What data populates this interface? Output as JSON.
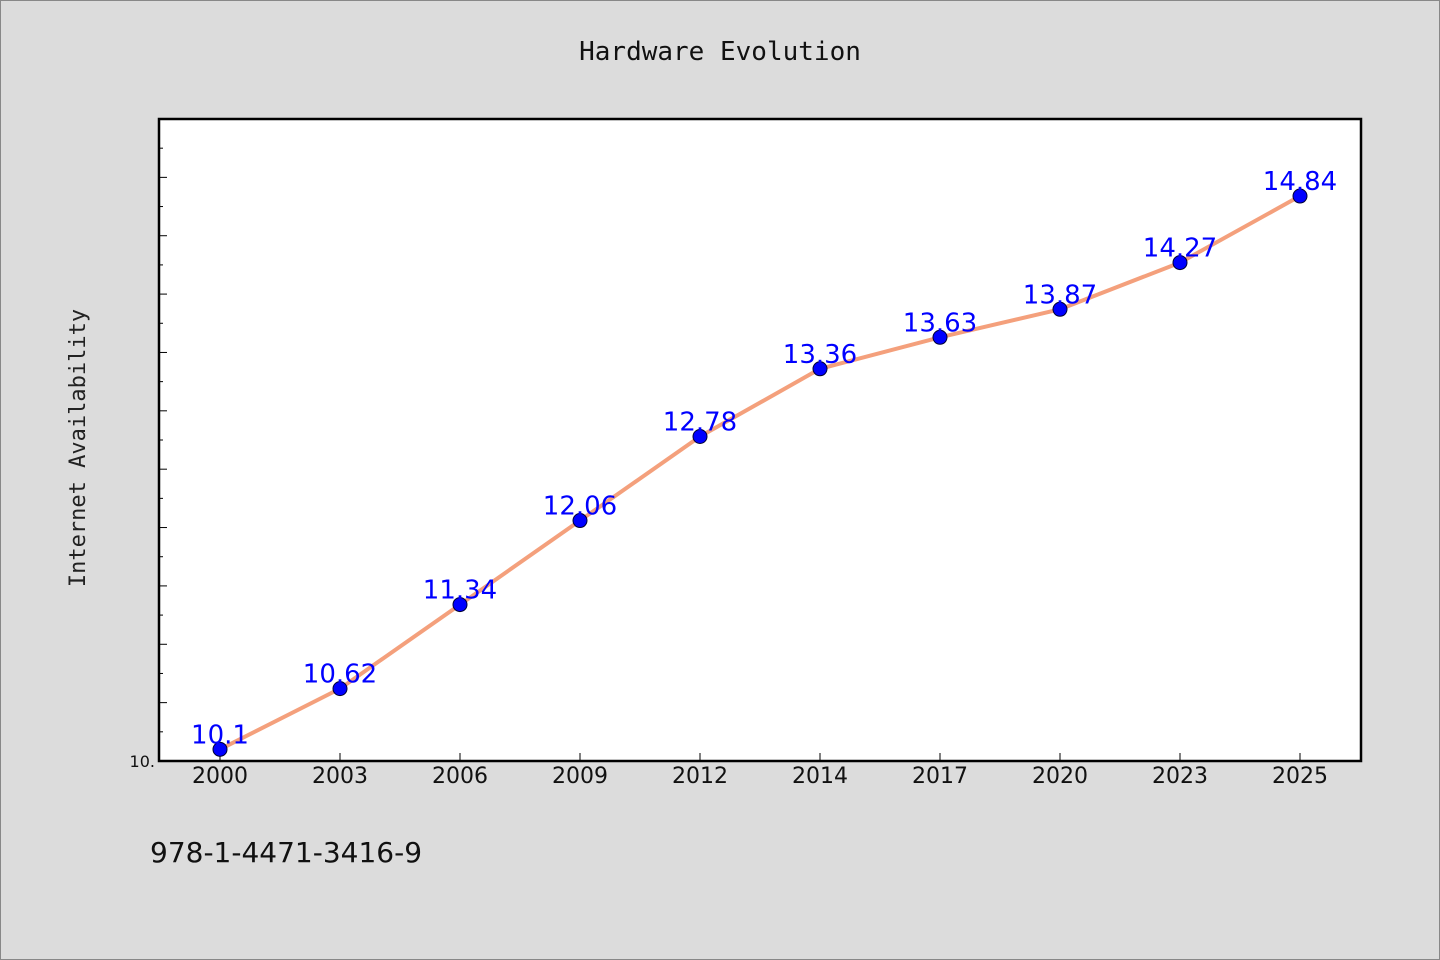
{
  "chart_data": {
    "type": "line",
    "title": "Hardware Evolution",
    "xlabel": "",
    "ylabel": "Internet Availability",
    "categories": [
      "2000",
      "2003",
      "2006",
      "2009",
      "2012",
      "2014",
      "2017",
      "2020",
      "2023",
      "2025"
    ],
    "series": [
      {
        "values": [
          10.1,
          10.62,
          11.34,
          12.06,
          12.78,
          13.36,
          13.63,
          13.87,
          14.27,
          14.84
        ],
        "labels": [
          "10.1",
          "10.62",
          "11.34",
          "12.06",
          "12.78",
          "13.36",
          "13.63",
          "13.87",
          "14.27",
          "14.84"
        ],
        "line_color": "#f4a07c",
        "marker_color": "#0000ff"
      }
    ],
    "ylim": [
      10.0,
      15.5
    ],
    "yticks": [
      {
        "value": 10.0,
        "label": "10."
      }
    ],
    "grid": false,
    "legend": "none"
  },
  "footer": {
    "isbn": "978-1-4471-3416-9"
  }
}
